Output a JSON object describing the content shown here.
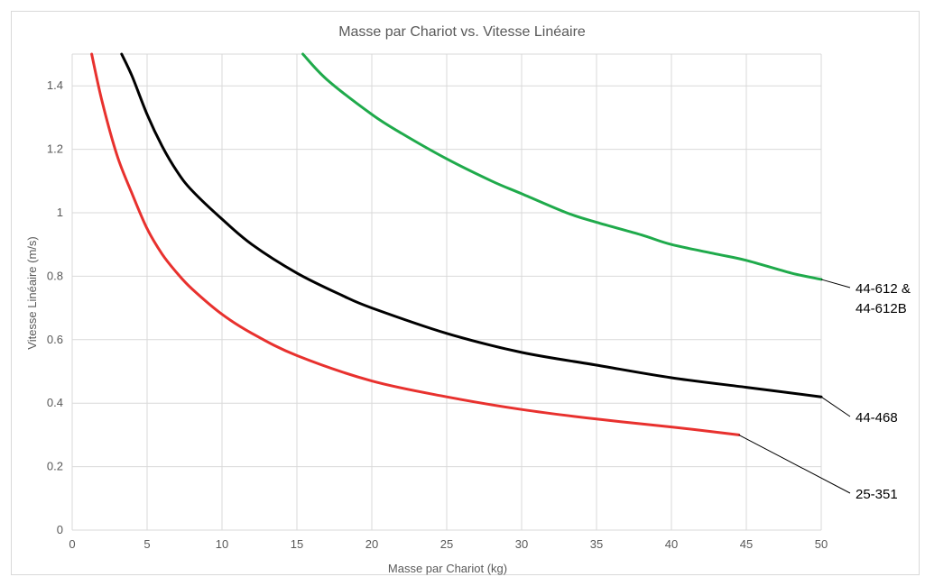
{
  "chart_data": {
    "type": "line",
    "title": "Masse par Chariot vs. Vitesse Linéaire",
    "xlabel": "Masse par Chariot (kg)",
    "ylabel": "Vitesse Linéaire (m/s)",
    "xlim": [
      0,
      50
    ],
    "ylim": [
      0,
      1.5
    ],
    "xticks": [
      0,
      5,
      10,
      15,
      20,
      25,
      30,
      35,
      40,
      45,
      50
    ],
    "yticks": [
      0,
      0.2,
      0.4,
      0.6,
      0.8,
      1,
      1.2,
      1.4
    ],
    "xtick_labels": [
      "0",
      "5",
      "10",
      "15",
      "20",
      "25",
      "30",
      "35",
      "40",
      "45",
      "50"
    ],
    "ytick_labels": [
      "0",
      "0.2",
      "0.4",
      "0.6",
      "0.8",
      "1",
      "1.2",
      "1.4"
    ],
    "grid": true,
    "legend": "callout-labels-right",
    "series": [
      {
        "name": "44-612 & 44-612B",
        "label_lines": [
          "44-612 &",
          "44-612B"
        ],
        "color": "#1faa4b",
        "x": [
          15.4,
          17,
          20,
          22,
          25,
          28,
          30,
          33,
          35,
          38,
          40,
          43,
          45,
          48,
          50
        ],
        "y": [
          1.5,
          1.42,
          1.31,
          1.25,
          1.17,
          1.1,
          1.06,
          1.0,
          0.97,
          0.93,
          0.9,
          0.87,
          0.85,
          0.81,
          0.79
        ]
      },
      {
        "name": "44-468",
        "label_lines": [
          "44-468"
        ],
        "color": "#000000",
        "x": [
          3.3,
          4,
          5,
          6,
          7,
          8,
          10,
          12,
          15,
          18,
          20,
          25,
          30,
          35,
          40,
          45,
          50
        ],
        "y": [
          1.5,
          1.43,
          1.31,
          1.21,
          1.13,
          1.07,
          0.98,
          0.9,
          0.81,
          0.74,
          0.7,
          0.62,
          0.56,
          0.52,
          0.48,
          0.45,
          0.42
        ]
      },
      {
        "name": "25-351",
        "label_lines": [
          "25-351"
        ],
        "color": "#e8312e",
        "x": [
          1.3,
          2,
          3,
          4,
          5,
          6,
          7,
          8,
          10,
          12,
          15,
          20,
          25,
          30,
          35,
          40,
          44.5
        ],
        "y": [
          1.5,
          1.35,
          1.18,
          1.06,
          0.95,
          0.87,
          0.81,
          0.76,
          0.68,
          0.62,
          0.55,
          0.47,
          0.42,
          0.38,
          0.35,
          0.325,
          0.3
        ]
      }
    ]
  }
}
